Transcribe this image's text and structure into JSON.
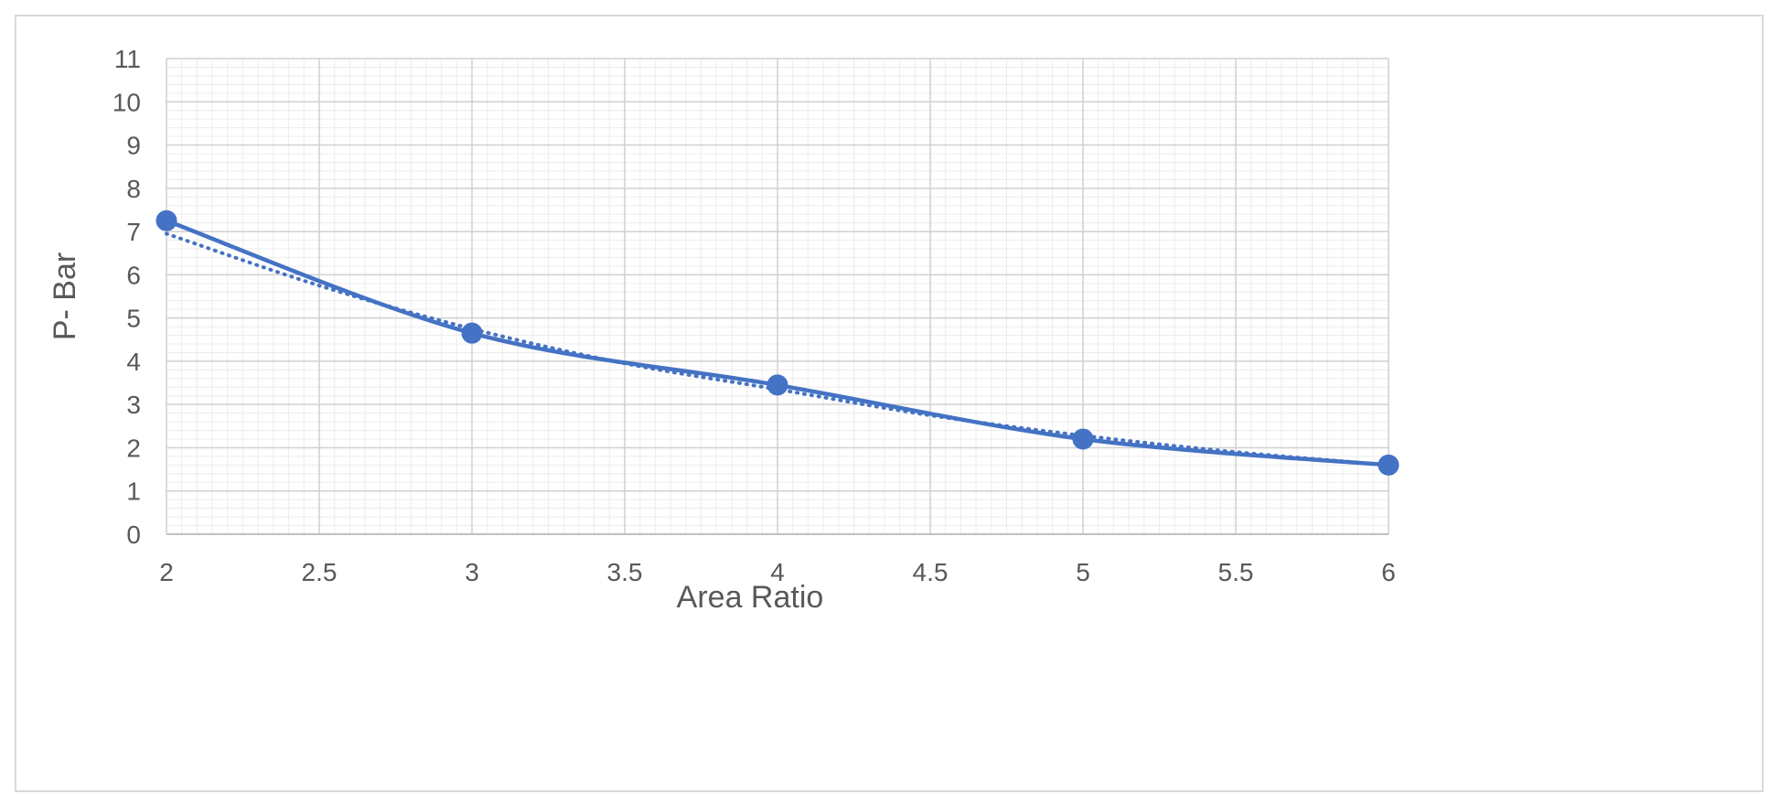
{
  "chart_data": {
    "type": "line",
    "title": "",
    "xlabel": "Area Ratio",
    "ylabel": "P- Bar",
    "xlim": [
      2,
      6
    ],
    "ylim": [
      0,
      11
    ],
    "x_ticks": [
      2,
      2.5,
      3,
      3.5,
      4,
      4.5,
      5,
      5.5,
      6
    ],
    "y_ticks": [
      0,
      1,
      2,
      3,
      4,
      5,
      6,
      7,
      8,
      9,
      10,
      11
    ],
    "x_tick_labels": [
      "2",
      "2.5",
      "3",
      "3.5",
      "4",
      "4.5",
      "5",
      "5.5",
      "6"
    ],
    "y_tick_labels": [
      "0",
      "1",
      "2",
      "3",
      "4",
      "5",
      "6",
      "7",
      "8",
      "9",
      "10",
      "11"
    ],
    "grid": true,
    "minor_grid": true,
    "legend": "none",
    "series": [
      {
        "x": [
          2,
          3,
          4,
          5,
          6
        ],
        "values": [
          7.25,
          4.65,
          3.45,
          2.2,
          1.6
        ],
        "style": "solid smoothed line with circle markers",
        "color": "#4472c4"
      },
      {
        "x": [
          2,
          2.5,
          3,
          3.5,
          4,
          4.5,
          5,
          5.5,
          6
        ],
        "values": [
          6.95,
          5.75,
          4.75,
          3.95,
          3.35,
          2.75,
          2.28,
          1.9,
          1.6
        ],
        "style": "dotted trendline",
        "color": "#4472c4"
      }
    ]
  }
}
